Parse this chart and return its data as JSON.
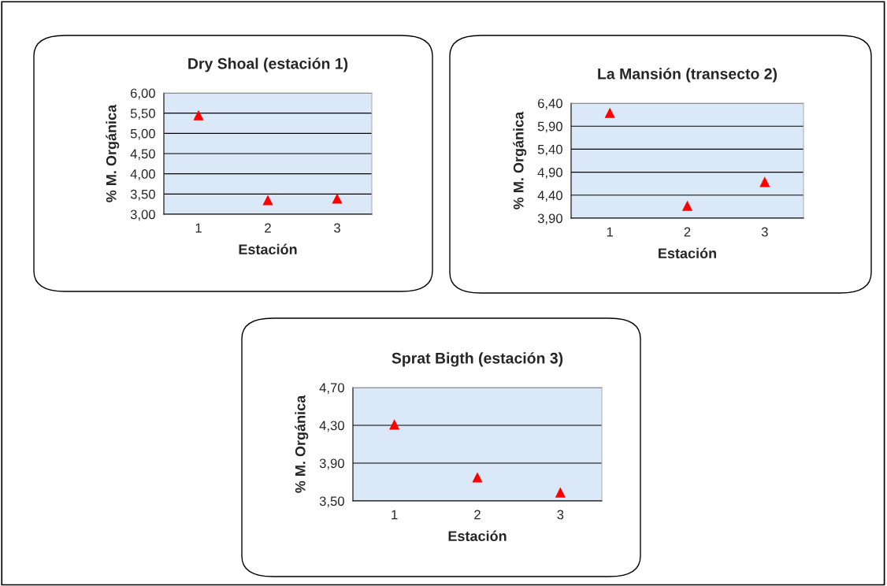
{
  "chart_data": [
    {
      "type": "scatter",
      "title": "Dry Shoal (estación 1)",
      "xlabel": "Estación",
      "ylabel": "% M. Orgánica",
      "categories": [
        "1",
        "2",
        "3"
      ],
      "values": [
        5.45,
        3.35,
        3.39
      ],
      "color": "#ff0000",
      "marker": "triangle",
      "grid": "y",
      "ylim": [
        3.0,
        6.0
      ],
      "yticks": [
        {
          "value": 3.0,
          "label": "3,00"
        },
        {
          "value": 3.5,
          "label": "3,50"
        },
        {
          "value": 4.0,
          "label": "4,00"
        },
        {
          "value": 4.5,
          "label": "4,50"
        },
        {
          "value": 5.0,
          "label": "5,00"
        },
        {
          "value": 5.5,
          "label": "5,50"
        },
        {
          "value": 6.0,
          "label": "6,00"
        }
      ]
    },
    {
      "type": "scatter",
      "title": "La Mansión (transecto 2)",
      "xlabel": "Estación",
      "ylabel": "% M. Orgánica",
      "categories": [
        "1",
        "2",
        "3"
      ],
      "values": [
        6.19,
        4.17,
        4.69
      ],
      "color": "#ff0000",
      "marker": "triangle",
      "grid": "y",
      "ylim": [
        3.9,
        6.4
      ],
      "yticks": [
        {
          "value": 3.9,
          "label": "3,90"
        },
        {
          "value": 4.4,
          "label": "4,40"
        },
        {
          "value": 4.9,
          "label": "4,90"
        },
        {
          "value": 5.4,
          "label": "5,40"
        },
        {
          "value": 5.9,
          "label": "5,90"
        },
        {
          "value": 6.4,
          "label": "6,40"
        }
      ]
    },
    {
      "type": "scatter",
      "title": "Sprat Bigth (estación 3)",
      "xlabel": "Estación",
      "ylabel": "% M. Orgánica",
      "categories": [
        "1",
        "2",
        "3"
      ],
      "values": [
        4.31,
        3.75,
        3.59
      ],
      "color": "#ff0000",
      "marker": "triangle",
      "grid": "y",
      "ylim": [
        3.5,
        4.7
      ],
      "yticks": [
        {
          "value": 3.5,
          "label": "3,50"
        },
        {
          "value": 3.9,
          "label": "3,90"
        },
        {
          "value": 4.3,
          "label": "4,30"
        },
        {
          "value": 4.7,
          "label": "4,70"
        }
      ]
    }
  ]
}
